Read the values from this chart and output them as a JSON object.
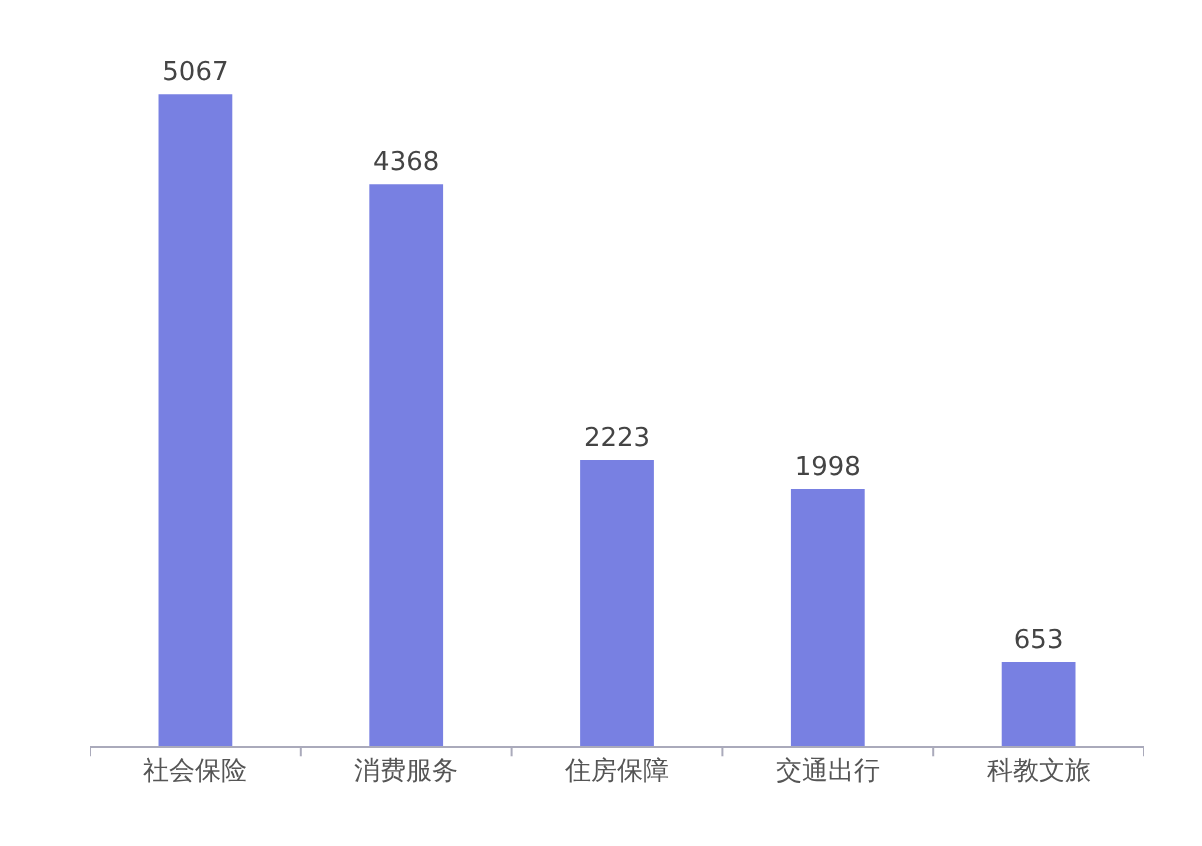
{
  "chart_data": {
    "type": "bar",
    "categories": [
      "社会保险",
      "消费服务",
      "住房保障",
      "交通出行",
      "科教文旅"
    ],
    "values": [
      5067,
      4368,
      2223,
      1998,
      653
    ],
    "color": "#7880e2",
    "data_labels": true
  }
}
